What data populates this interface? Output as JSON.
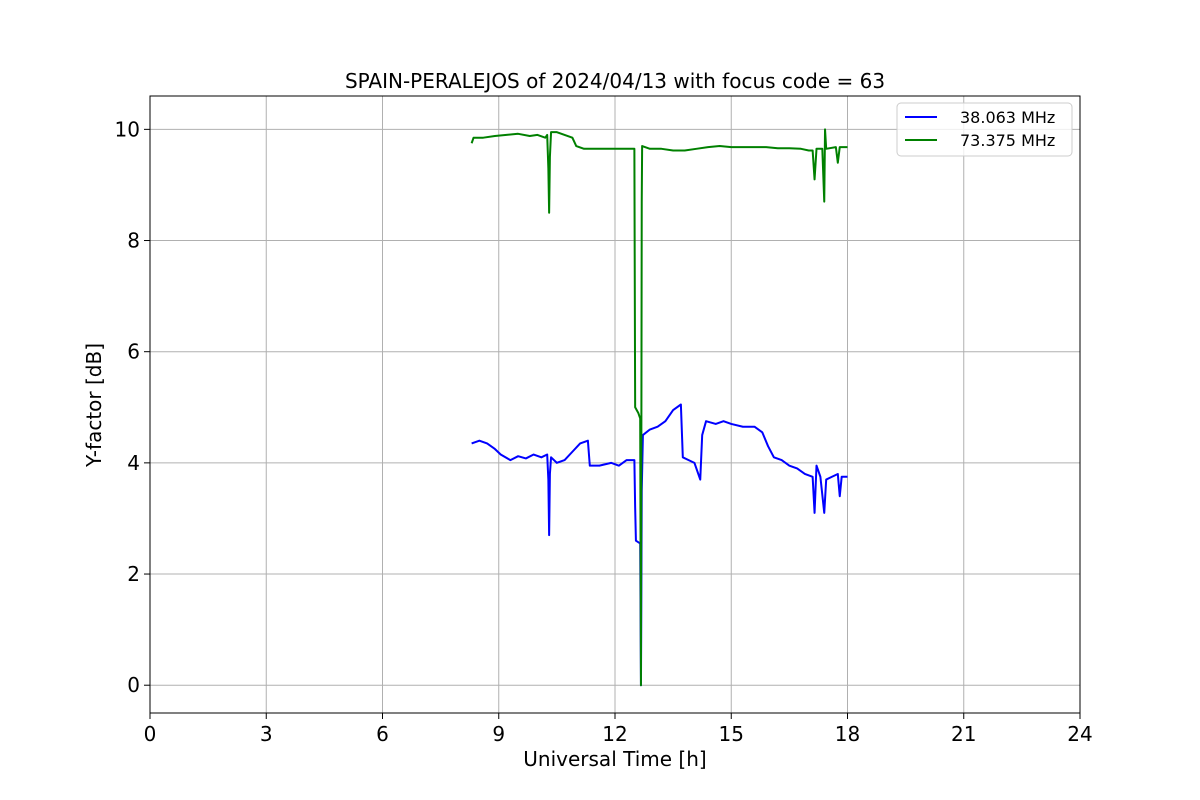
{
  "chart_data": {
    "type": "line",
    "title": "SPAIN-PERALEJOS of 2024/04/13 with focus code = 63",
    "xlabel": "Universal Time [h]",
    "ylabel": "Y-factor [dB]",
    "xlim": [
      0,
      24
    ],
    "ylim": [
      -0.5,
      10.6
    ],
    "xticks": [
      0,
      3,
      6,
      9,
      12,
      15,
      18,
      21,
      24
    ],
    "xtick_labels": [
      "0",
      "3",
      "6",
      "9",
      "12",
      "15",
      "18",
      "21",
      "24"
    ],
    "yticks": [
      0,
      2,
      4,
      6,
      8,
      10
    ],
    "ytick_labels": [
      "0",
      "2",
      "4",
      "6",
      "8",
      "10"
    ],
    "grid": true,
    "legend_position": "top-right",
    "series": [
      {
        "name": "38.063 MHz",
        "color": "#0000ff",
        "points": [
          [
            8.3,
            4.35
          ],
          [
            8.5,
            4.4
          ],
          [
            8.7,
            4.35
          ],
          [
            8.9,
            4.25
          ],
          [
            9.05,
            4.15
          ],
          [
            9.3,
            4.05
          ],
          [
            9.5,
            4.12
          ],
          [
            9.7,
            4.08
          ],
          [
            9.9,
            4.15
          ],
          [
            10.1,
            4.1
          ],
          [
            10.25,
            4.15
          ],
          [
            10.28,
            3.7
          ],
          [
            10.3,
            2.7
          ],
          [
            10.32,
            3.8
          ],
          [
            10.35,
            4.1
          ],
          [
            10.5,
            4.0
          ],
          [
            10.7,
            4.05
          ],
          [
            10.9,
            4.2
          ],
          [
            11.1,
            4.35
          ],
          [
            11.3,
            4.4
          ],
          [
            11.35,
            3.95
          ],
          [
            11.6,
            3.95
          ],
          [
            11.9,
            4.0
          ],
          [
            12.1,
            3.95
          ],
          [
            12.3,
            4.05
          ],
          [
            12.5,
            4.05
          ],
          [
            12.52,
            3.2
          ],
          [
            12.54,
            2.6
          ],
          [
            12.65,
            2.55
          ],
          [
            12.67,
            0.0
          ],
          [
            12.69,
            3.5
          ],
          [
            12.72,
            4.5
          ],
          [
            12.9,
            4.6
          ],
          [
            13.1,
            4.65
          ],
          [
            13.3,
            4.75
          ],
          [
            13.5,
            4.95
          ],
          [
            13.7,
            5.05
          ],
          [
            13.75,
            4.1
          ],
          [
            13.9,
            4.05
          ],
          [
            14.05,
            4.0
          ],
          [
            14.2,
            3.7
          ],
          [
            14.25,
            4.5
          ],
          [
            14.35,
            4.75
          ],
          [
            14.6,
            4.7
          ],
          [
            14.8,
            4.75
          ],
          [
            15.0,
            4.7
          ],
          [
            15.3,
            4.65
          ],
          [
            15.6,
            4.65
          ],
          [
            15.8,
            4.55
          ],
          [
            15.95,
            4.3
          ],
          [
            16.1,
            4.1
          ],
          [
            16.3,
            4.05
          ],
          [
            16.5,
            3.95
          ],
          [
            16.7,
            3.9
          ],
          [
            16.9,
            3.8
          ],
          [
            17.1,
            3.75
          ],
          [
            17.15,
            3.1
          ],
          [
            17.2,
            3.95
          ],
          [
            17.3,
            3.75
          ],
          [
            17.4,
            3.1
          ],
          [
            17.45,
            3.7
          ],
          [
            17.6,
            3.75
          ],
          [
            17.75,
            3.8
          ],
          [
            17.8,
            3.4
          ],
          [
            17.85,
            3.75
          ],
          [
            18.0,
            3.75
          ]
        ]
      },
      {
        "name": "73.375 MHz",
        "color": "#008000",
        "points": [
          [
            8.3,
            9.75
          ],
          [
            8.35,
            9.85
          ],
          [
            8.6,
            9.85
          ],
          [
            8.9,
            9.88
          ],
          [
            9.2,
            9.9
          ],
          [
            9.5,
            9.92
          ],
          [
            9.8,
            9.88
          ],
          [
            10.0,
            9.9
          ],
          [
            10.2,
            9.85
          ],
          [
            10.25,
            9.9
          ],
          [
            10.28,
            9.3
          ],
          [
            10.3,
            8.5
          ],
          [
            10.32,
            9.5
          ],
          [
            10.35,
            9.95
          ],
          [
            10.5,
            9.95
          ],
          [
            10.7,
            9.9
          ],
          [
            10.9,
            9.85
          ],
          [
            11.0,
            9.7
          ],
          [
            11.2,
            9.65
          ],
          [
            11.5,
            9.65
          ],
          [
            11.8,
            9.65
          ],
          [
            12.1,
            9.65
          ],
          [
            12.4,
            9.65
          ],
          [
            12.5,
            9.65
          ],
          [
            12.52,
            5.0
          ],
          [
            12.6,
            4.9
          ],
          [
            12.65,
            4.8
          ],
          [
            12.67,
            0.0
          ],
          [
            12.69,
            8.7
          ],
          [
            12.7,
            9.7
          ],
          [
            12.9,
            9.65
          ],
          [
            13.2,
            9.65
          ],
          [
            13.5,
            9.62
          ],
          [
            13.8,
            9.62
          ],
          [
            14.1,
            9.65
          ],
          [
            14.4,
            9.68
          ],
          [
            14.7,
            9.7
          ],
          [
            15.0,
            9.68
          ],
          [
            15.3,
            9.68
          ],
          [
            15.6,
            9.68
          ],
          [
            15.9,
            9.68
          ],
          [
            16.2,
            9.66
          ],
          [
            16.5,
            9.66
          ],
          [
            16.8,
            9.65
          ],
          [
            17.0,
            9.62
          ],
          [
            17.1,
            9.62
          ],
          [
            17.15,
            9.1
          ],
          [
            17.2,
            9.65
          ],
          [
            17.35,
            9.65
          ],
          [
            17.4,
            8.7
          ],
          [
            17.42,
            10.0
          ],
          [
            17.45,
            9.65
          ],
          [
            17.7,
            9.68
          ],
          [
            17.75,
            9.4
          ],
          [
            17.8,
            9.68
          ],
          [
            18.0,
            9.68
          ]
        ]
      }
    ]
  }
}
